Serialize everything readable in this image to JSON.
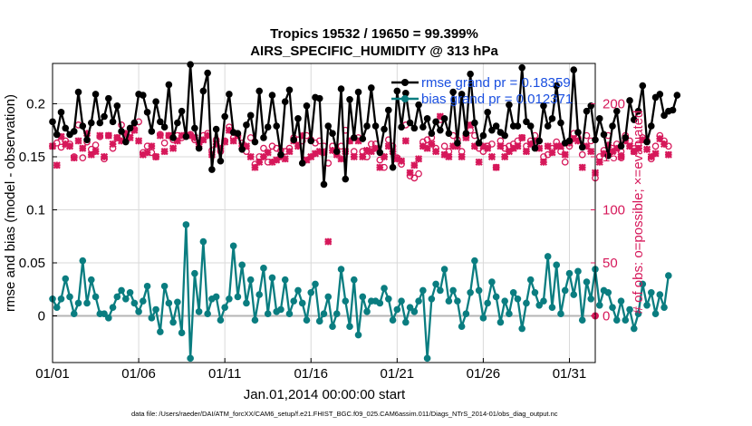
{
  "chart_data": {
    "type": "line",
    "title": "Tropics 19532 / 19650 = 99.399%",
    "subtitle": "AIRS_SPECIFIC_HUMIDITY @ 313 hPa",
    "xlabel": "Jan.01,2014 00:00:00 start",
    "ylabel_left": "rmse and bias (model - observation)",
    "ylabel_right": "# of obs: o=possible; ×=evaluated",
    "x_tick_labels": [
      "01/01",
      "01/06",
      "01/11",
      "01/16",
      "01/21",
      "01/26",
      "01/31"
    ],
    "x_tick_days": [
      0,
      5,
      10,
      15,
      20,
      25,
      30
    ],
    "xlim_days": [
      0,
      31.5
    ],
    "y_left_ticks": [
      0,
      0.05,
      0.1,
      0.15,
      0.2
    ],
    "y_left_tick_labels": [
      "0",
      "0.05",
      "0.1",
      "0.15",
      "0.2"
    ],
    "ylim_left": [
      -0.044,
      0.238
    ],
    "y_right_ticks": [
      0,
      50,
      100,
      150,
      200
    ],
    "y_right_tick_labels": [
      "0",
      "50",
      "100",
      "150",
      "200"
    ],
    "ylim_right": [
      -44,
      238
    ],
    "grid": true,
    "legend_position": "top-right",
    "colors": {
      "rmse": "#000000",
      "bias": "#0a7d80",
      "obs": "#d6185a",
      "zero_line": "#b4b4b4",
      "legend_text": "#1a4fe0",
      "grid": "#d9d9d9"
    },
    "time_step_days": 0.25,
    "series": [
      {
        "name": "rmse",
        "legend": "rmse grand pr = 0.18359",
        "axis": "left",
        "values": [
          0.183,
          0.171,
          0.192,
          0.177,
          0.171,
          0.174,
          0.211,
          0.179,
          0.166,
          0.182,
          0.209,
          0.182,
          0.188,
          0.205,
          0.183,
          0.198,
          0.174,
          0.164,
          0.177,
          0.182,
          0.209,
          0.208,
          0.192,
          0.174,
          0.202,
          0.183,
          0.178,
          0.218,
          0.168,
          0.182,
          0.193,
          0.169,
          0.237,
          0.177,
          0.158,
          0.212,
          0.229,
          0.138,
          0.176,
          0.146,
          0.188,
          0.209,
          0.173,
          0.172,
          0.157,
          0.18,
          0.189,
          0.164,
          0.212,
          0.168,
          0.178,
          0.208,
          0.179,
          0.152,
          0.202,
          0.213,
          0.166,
          0.186,
          0.144,
          0.198,
          0.165,
          0.206,
          0.205,
          0.124,
          0.179,
          0.172,
          0.155,
          0.214,
          0.129,
          0.204,
          0.168,
          0.211,
          0.167,
          0.179,
          0.215,
          0.179,
          0.154,
          0.176,
          0.194,
          0.14,
          0.212,
          0.178,
          0.21,
          0.182,
          0.177,
          0.199,
          0.178,
          0.186,
          0.172,
          0.183,
          0.175,
          0.186,
          0.172,
          0.211,
          0.163,
          0.209,
          0.172,
          0.228,
          0.182,
          0.163,
          0.17,
          0.192,
          0.175,
          0.179,
          0.173,
          0.17,
          0.199,
          0.179,
          0.179,
          0.234,
          0.183,
          0.179,
          0.158,
          0.165,
          0.198,
          0.179,
          0.186,
          0.217,
          0.182,
          0.163,
          0.165,
          0.232,
          0.173,
          0.159,
          0.193,
          0.198,
          0.166,
          0.186,
          0.171,
          0.151,
          0.179,
          0.193,
          0.16,
          0.168,
          0.203,
          0.185,
          0.193,
          0.217,
          0.164,
          0.179,
          0.206,
          0.209,
          0.189,
          0.193,
          0.194,
          0.208
        ]
      },
      {
        "name": "bias",
        "legend": "bias grand pr = 0.012371",
        "axis": "left",
        "values": [
          0.016,
          0.008,
          0.016,
          0.035,
          0.018,
          0.002,
          0.012,
          0.052,
          0.012,
          0.034,
          0.018,
          0.002,
          0.002,
          -0.002,
          0.008,
          0.018,
          0.024,
          0.016,
          0.022,
          0.012,
          0.004,
          0.014,
          0.028,
          -0.002,
          0.006,
          -0.015,
          0.028,
          0.012,
          -0.006,
          0.013,
          -0.016,
          0.086,
          -0.04,
          0.04,
          0.004,
          0.07,
          0.002,
          0.016,
          0.018,
          -0.004,
          0.008,
          0.016,
          0.066,
          0.018,
          0.048,
          0.012,
          0.034,
          -0.004,
          0.02,
          0.045,
          0.002,
          0.036,
          0.004,
          0.006,
          0.034,
          0.002,
          0.014,
          0.024,
          0.012,
          -0.004,
          0.022,
          0.03,
          -0.005,
          0.002,
          0.018,
          -0.01,
          0.002,
          0.044,
          0.014,
          -0.01,
          0.034,
          -0.018,
          0.018,
          0.004,
          0.014,
          0.014,
          0.012,
          0.026,
          0.016,
          -0.004,
          0.006,
          0.014,
          -0.006,
          0.008,
          0.004,
          0.014,
          0.024,
          -0.04,
          0.016,
          0.03,
          0.024,
          0.044,
          0.014,
          0.024,
          0.014,
          -0.01,
          0.002,
          0.022,
          0.052,
          0.024,
          -0.002,
          0.012,
          0.032,
          0.018,
          -0.006,
          0.014,
          0.002,
          0.022,
          0.016,
          -0.012,
          0.012,
          0.034,
          0.022,
          0.01,
          0.014,
          0.056,
          0.008,
          0.048,
          0.002,
          0.024,
          0.04,
          0.02,
          0.042,
          -0.004,
          0.032,
          0.016,
          0.044,
          0.01,
          0.024,
          0.022,
          0.008,
          -0.004,
          0.014,
          -0.004,
          0.006,
          -0.012,
          0.002,
          0.03,
          0.01,
          0.022,
          0.002,
          0.02,
          0.008,
          0.038
        ]
      },
      {
        "name": "obs possible",
        "legend": "o=possible",
        "axis": "right",
        "values": [
          160,
          163,
          159,
          165,
          162,
          150,
          180,
          149,
          164,
          157,
          161,
          169,
          148,
          170,
          158,
          168,
          180,
          166,
          173,
          176,
          183,
          154,
          160,
          154,
          150,
          171,
          163,
          170,
          166,
          170,
          168,
          170,
          171,
          166,
          163,
          170,
          172,
          156,
          166,
          155,
          165,
          178,
          168,
          170,
          163,
          155,
          168,
          143,
          150,
          158,
          145,
          160,
          158,
          156,
          155,
          158,
          168,
          166,
          165,
          170,
          166,
          163,
          165,
          160,
          144,
          160,
          155,
          160,
          175,
          165,
          155,
          168,
          155,
          150,
          162,
          162,
          147,
          140,
          166,
          160,
          149,
          143,
          180,
          132,
          130,
          134,
          164,
          166,
          168,
          158,
          185,
          160,
          155,
          170,
          166,
          155,
          170,
          175,
          170,
          158,
          155,
          160,
          162,
          140,
          165,
          158,
          160,
          162,
          165,
          168,
          160,
          165,
          170,
          165,
          150,
          152,
          158,
          164,
          155,
          145,
          160,
          172,
          168,
          152,
          170,
          165,
          130,
          150,
          156,
          170,
          158,
          162,
          155,
          170,
          165,
          155,
          162,
          168,
          165,
          148,
          160,
          170,
          165,
          160
        ]
      },
      {
        "name": "obs evaluated",
        "legend": "×=evaluated",
        "axis": "right",
        "values": [
          160,
          142,
          169,
          162,
          160,
          149,
          165,
          158,
          172,
          152,
          155,
          170,
          150,
          170,
          162,
          168,
          165,
          172,
          168,
          175,
          165,
          152,
          154,
          160,
          150,
          170,
          155,
          170,
          158,
          165,
          170,
          170,
          170,
          168,
          162,
          166,
          170,
          152,
          162,
          158,
          164,
          175,
          165,
          170,
          160,
          160,
          150,
          140,
          145,
          150,
          154,
          145,
          147,
          150,
          148,
          155,
          165,
          160,
          170,
          147,
          150,
          153,
          155,
          154,
          70,
          156,
          152,
          148,
          155,
          165,
          150,
          165,
          150,
          156,
          155,
          158,
          140,
          150,
          160,
          155,
          148,
          146,
          165,
          135,
          142,
          148,
          160,
          158,
          162,
          155,
          188,
          152,
          150,
          160,
          160,
          150,
          168,
          180,
          160,
          145,
          160,
          158,
          150,
          140,
          160,
          150,
          155,
          158,
          160,
          168,
          155,
          162,
          165,
          158,
          145,
          160,
          154,
          160,
          160,
          152,
          163,
          167,
          165,
          140,
          160,
          155,
          135,
          145,
          153,
          161,
          155,
          158,
          150,
          165,
          160,
          155,
          158,
          166,
          157,
          150,
          153,
          167,
          162,
          152
        ]
      }
    ],
    "right_axis_end_marker": 0,
    "footnote": "data file: /Users/raeder/DAI/ATM_forcXX/CAM6_setup/f.e21.FHIST_BGC.f09_025.CAM6assim.011/Diags_NTrS_2014-01/obs_diag_output.nc"
  }
}
